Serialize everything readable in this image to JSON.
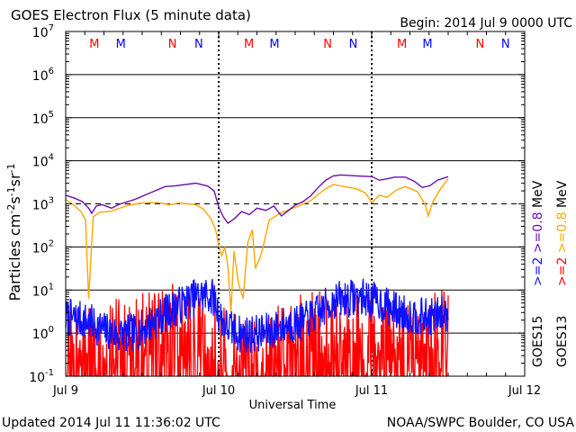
{
  "chart_data": {
    "type": "line",
    "title": "GOES Electron Flux (5 minute data)",
    "begin_label": "Begin: 2014 Jul 9 0000 UTC",
    "xlabel": "Universal Time",
    "ylabel_base": "Particles cm",
    "ylabel_exp1": "-2",
    "ylabel_mid1": "s",
    "ylabel_exp2": "-1",
    "ylabel_mid2": "sr",
    "ylabel_exp3": "-1",
    "updated_label": "Updated 2014 Jul 11 11:36:02 UTC",
    "credit_label": "NOAA/SWPC Boulder, CO USA",
    "x_unit": "days since 2014 Jul 9 00:00 UTC",
    "xlim": [
      0,
      3
    ],
    "x_ticks": [
      {
        "x": 0,
        "label": "Jul 9"
      },
      {
        "x": 1,
        "label": "Jul 10"
      },
      {
        "x": 2,
        "label": "Jul 11"
      },
      {
        "x": 3,
        "label": "Jul 12"
      }
    ],
    "y_scale": "log",
    "ylim_log10": [
      -1,
      7
    ],
    "y_ticks_log10": [
      -1,
      0,
      1,
      2,
      3,
      4,
      5,
      6,
      7
    ],
    "y_tick_base": "10",
    "threshold_log10": 3,
    "grid": true,
    "legend_right": {
      "g15": "GOES15",
      "g13": "GOES13",
      "e2_15": ">=2",
      "e08_15": ">=0.8",
      "mev_15": "MeV",
      "e2_13": ">=2",
      "e08_13": ">=0.8",
      "mev_13": "MeV"
    },
    "colors": {
      "goes15_ge2": "#1010ff",
      "goes13_ge2": "#ff0000",
      "goes15_ge08": "#6a0dad",
      "goes13_ge08": "#ffa500",
      "markers_M": "#ff0000",
      "markers_N": "#0000ff"
    },
    "markers": [
      {
        "x": 0.1875,
        "label": "M",
        "color": "#ff0000"
      },
      {
        "x": 0.3604,
        "label": "M",
        "color": "#0000ff"
      },
      {
        "x": 0.6979,
        "label": "N",
        "color": "#ff0000"
      },
      {
        "x": 0.8698,
        "label": "N",
        "color": "#0000ff"
      },
      {
        "x": 1.1979,
        "label": "M",
        "color": "#ff0000"
      },
      {
        "x": 1.3646,
        "label": "M",
        "color": "#0000ff"
      },
      {
        "x": 1.7125,
        "label": "N",
        "color": "#ff0000"
      },
      {
        "x": 1.8792,
        "label": "N",
        "color": "#0000ff"
      },
      {
        "x": 2.1979,
        "label": "M",
        "color": "#ff0000"
      },
      {
        "x": 2.3646,
        "label": "M",
        "color": "#0000ff"
      },
      {
        "x": 2.7083,
        "label": "N",
        "color": "#ff0000"
      },
      {
        "x": 2.875,
        "label": "N",
        "color": "#0000ff"
      }
    ],
    "series": [
      {
        "name": "GOES15 >=0.8 MeV",
        "color": "#6a0dad",
        "log10_values": [
          [
            0.0,
            3.2
          ],
          [
            0.06,
            3.13
          ],
          [
            0.11,
            3.05
          ],
          [
            0.15,
            2.9
          ],
          [
            0.17,
            2.78
          ],
          [
            0.2,
            2.95
          ],
          [
            0.24,
            2.98
          ],
          [
            0.3,
            2.9
          ],
          [
            0.35,
            2.99
          ],
          [
            0.45,
            3.1
          ],
          [
            0.55,
            3.25
          ],
          [
            0.65,
            3.4
          ],
          [
            0.72,
            3.42
          ],
          [
            0.85,
            3.48
          ],
          [
            0.93,
            3.41
          ],
          [
            0.97,
            3.3
          ],
          [
            1.0,
            2.93
          ],
          [
            1.03,
            2.7
          ],
          [
            1.06,
            2.55
          ],
          [
            1.1,
            2.65
          ],
          [
            1.15,
            2.82
          ],
          [
            1.2,
            2.75
          ],
          [
            1.25,
            2.9
          ],
          [
            1.31,
            2.85
          ],
          [
            1.36,
            2.95
          ],
          [
            1.41,
            2.72
          ],
          [
            1.44,
            2.8
          ],
          [
            1.5,
            2.97
          ],
          [
            1.55,
            3.05
          ],
          [
            1.6,
            3.18
          ],
          [
            1.65,
            3.38
          ],
          [
            1.7,
            3.55
          ],
          [
            1.75,
            3.65
          ],
          [
            1.8,
            3.67
          ],
          [
            1.9,
            3.65
          ],
          [
            2.0,
            3.63
          ],
          [
            2.05,
            3.55
          ],
          [
            2.1,
            3.58
          ],
          [
            2.15,
            3.62
          ],
          [
            2.22,
            3.62
          ],
          [
            2.28,
            3.52
          ],
          [
            2.33,
            3.38
          ],
          [
            2.38,
            3.42
          ],
          [
            2.43,
            3.55
          ],
          [
            2.5,
            3.63
          ]
        ]
      },
      {
        "name": "GOES13 >=0.8 MeV",
        "color": "#ffa500",
        "log10_values": [
          [
            0.0,
            3.1
          ],
          [
            0.05,
            2.98
          ],
          [
            0.1,
            2.82
          ],
          [
            0.13,
            2.62
          ],
          [
            0.15,
            0.8
          ],
          [
            0.18,
            2.7
          ],
          [
            0.22,
            2.8
          ],
          [
            0.3,
            2.83
          ],
          [
            0.4,
            2.96
          ],
          [
            0.5,
            3.02
          ],
          [
            0.6,
            3.03
          ],
          [
            0.68,
            2.98
          ],
          [
            0.74,
            3.02
          ],
          [
            0.8,
            3.0
          ],
          [
            0.85,
            2.98
          ],
          [
            0.9,
            2.88
          ],
          [
            0.95,
            2.65
          ],
          [
            0.98,
            2.4
          ],
          [
            1.0,
            2.05
          ],
          [
            1.02,
            1.8
          ],
          [
            1.04,
            2.0
          ],
          [
            1.06,
            1.55
          ],
          [
            1.08,
            0.5
          ],
          [
            1.1,
            1.9
          ],
          [
            1.13,
            1.15
          ],
          [
            1.16,
            0.8
          ],
          [
            1.19,
            2.1
          ],
          [
            1.22,
            2.4
          ],
          [
            1.24,
            1.5
          ],
          [
            1.27,
            1.75
          ],
          [
            1.29,
            2.0
          ],
          [
            1.33,
            2.62
          ],
          [
            1.4,
            2.78
          ],
          [
            1.5,
            2.92
          ],
          [
            1.6,
            3.07
          ],
          [
            1.65,
            3.22
          ],
          [
            1.7,
            3.35
          ],
          [
            1.75,
            3.45
          ],
          [
            1.82,
            3.4
          ],
          [
            1.9,
            3.35
          ],
          [
            1.96,
            3.25
          ],
          [
            2.0,
            3.03
          ],
          [
            2.05,
            3.2
          ],
          [
            2.1,
            3.15
          ],
          [
            2.16,
            3.32
          ],
          [
            2.22,
            3.4
          ],
          [
            2.3,
            3.28
          ],
          [
            2.35,
            2.98
          ],
          [
            2.37,
            2.72
          ],
          [
            2.4,
            3.05
          ],
          [
            2.45,
            3.35
          ],
          [
            2.5,
            3.58
          ]
        ]
      }
    ],
    "noisy_series": [
      {
        "name": "GOES15 >=2 MeV",
        "color": "#1010ff",
        "base_log10": [
          [
            0.0,
            0.45
          ],
          [
            0.1,
            0.4
          ],
          [
            0.18,
            0.3
          ],
          [
            0.25,
            0.15
          ],
          [
            0.35,
            0.05
          ],
          [
            0.45,
            0.1
          ],
          [
            0.55,
            0.3
          ],
          [
            0.65,
            0.55
          ],
          [
            0.75,
            0.75
          ],
          [
            0.85,
            0.92
          ],
          [
            0.92,
            0.98
          ],
          [
            0.97,
            0.9
          ],
          [
            1.0,
            0.55
          ],
          [
            1.05,
            0.25
          ],
          [
            1.15,
            0.05
          ],
          [
            1.3,
            0.1
          ],
          [
            1.45,
            0.3
          ],
          [
            1.55,
            0.35
          ],
          [
            1.65,
            0.55
          ],
          [
            1.75,
            0.85
          ],
          [
            1.85,
            0.9
          ],
          [
            1.95,
            0.92
          ],
          [
            2.05,
            0.8
          ],
          [
            2.2,
            0.55
          ],
          [
            2.35,
            0.45
          ],
          [
            2.5,
            0.55
          ]
        ],
        "noise": 0.45,
        "seed": 7
      },
      {
        "name": "GOES13 >=2 MeV",
        "color": "#ff0000",
        "base_log10": [
          [
            0.0,
            -0.1
          ],
          [
            0.1,
            -0.2
          ],
          [
            0.2,
            -0.3
          ],
          [
            0.3,
            -0.1
          ],
          [
            0.45,
            0.0
          ],
          [
            0.55,
            0.15
          ],
          [
            0.65,
            0.25
          ],
          [
            0.75,
            0.3
          ],
          [
            0.85,
            0.25
          ],
          [
            0.95,
            0.0
          ],
          [
            1.05,
            -0.3
          ],
          [
            1.2,
            -0.4
          ],
          [
            1.35,
            -0.2
          ],
          [
            1.5,
            0.0
          ],
          [
            1.6,
            0.15
          ],
          [
            1.7,
            0.1
          ],
          [
            1.8,
            0.05
          ],
          [
            1.95,
            0.0
          ],
          [
            2.1,
            -0.1
          ],
          [
            2.25,
            -0.05
          ],
          [
            2.4,
            0.05
          ],
          [
            2.5,
            0.2
          ]
        ],
        "noise": 1.1,
        "seed": 31
      }
    ]
  }
}
